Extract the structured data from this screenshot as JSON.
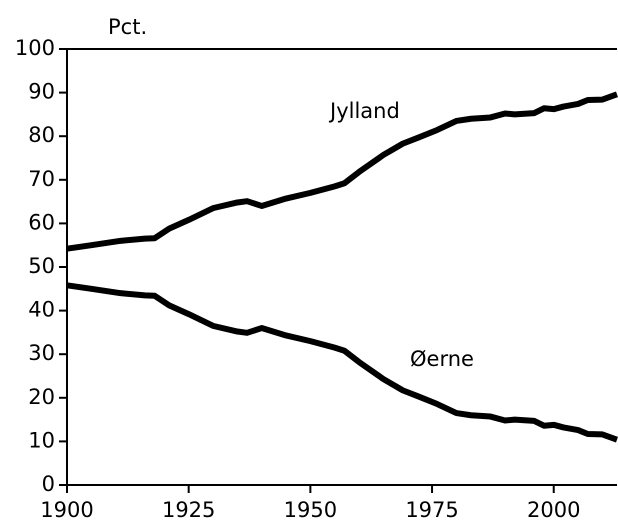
{
  "chart_data": {
    "type": "line",
    "y_label": "Pct.",
    "x": [
      1900,
      1905,
      1911,
      1916,
      1918,
      1921,
      1925,
      1930,
      1935,
      1937,
      1940,
      1945,
      1950,
      1955,
      1957,
      1960,
      1965,
      1969,
      1972,
      1976,
      1980,
      1983,
      1987,
      1990,
      1992,
      1996,
      1998,
      2000,
      2002,
      2005,
      2007,
      2010,
      2013
    ],
    "series": [
      {
        "name": "Jylland",
        "color": "#000000",
        "values": [
          54.2,
          55.0,
          56.0,
          56.5,
          56.6,
          58.8,
          60.8,
          63.5,
          64.8,
          65.1,
          64.0,
          65.7,
          67.0,
          68.5,
          69.2,
          71.8,
          75.7,
          78.3,
          79.6,
          81.4,
          83.5,
          84.0,
          84.3,
          85.2,
          85.0,
          85.3,
          86.4,
          86.2,
          86.8,
          87.4,
          88.3,
          88.4,
          89.6
        ]
      },
      {
        "name": "Øerne",
        "color": "#000000",
        "values": [
          45.8,
          45.0,
          44.0,
          43.5,
          43.4,
          41.2,
          39.2,
          36.5,
          35.2,
          34.9,
          36.0,
          34.3,
          33.0,
          31.5,
          30.8,
          28.2,
          24.3,
          21.7,
          20.4,
          18.6,
          16.5,
          16.0,
          15.7,
          14.8,
          15.0,
          14.7,
          13.6,
          13.8,
          13.2,
          12.6,
          11.7,
          11.6,
          10.4
        ]
      }
    ],
    "xlim": [
      1900,
      2013
    ],
    "xticks": [
      1900,
      1925,
      1950,
      1975,
      2000
    ],
    "ylim": [
      0,
      100
    ],
    "yticks": [
      0,
      10,
      20,
      30,
      40,
      50,
      60,
      70,
      80,
      90,
      100
    ]
  }
}
